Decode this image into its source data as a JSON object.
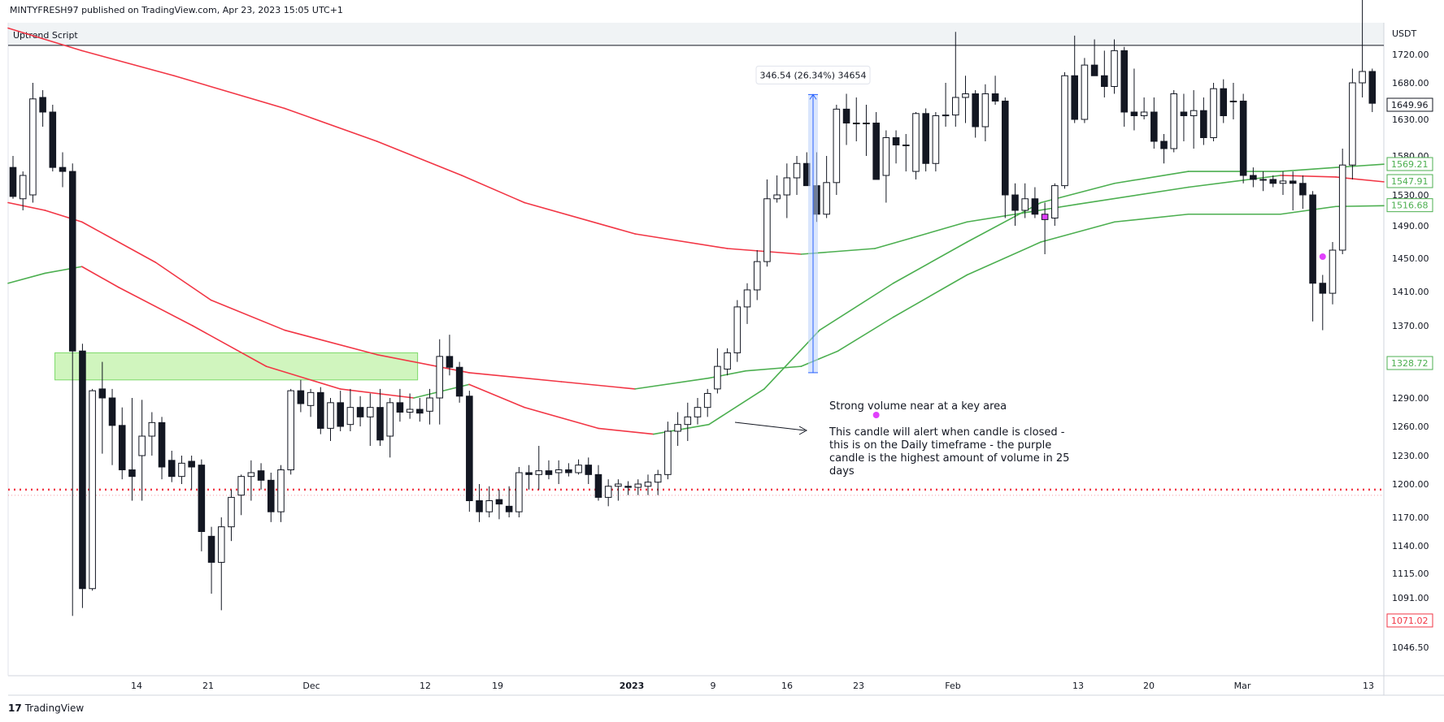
{
  "header": {
    "published": "MINTYFRESH97 published on TradingView.com, Apr 23, 2023 15:05 UTC+1"
  },
  "indicator_label": "Uptrend Script",
  "brand": {
    "logo_text": "TradingView",
    "logo_glyph": "17"
  },
  "price_axis": {
    "currency": "USDT",
    "ticks": [
      "1720.00",
      "1680.00",
      "1630.00",
      "1580.00",
      "1530.00",
      "1490.00",
      "1450.00",
      "1410.00",
      "1370.00",
      "1290.00",
      "1260.00",
      "1230.00",
      "1200.00",
      "1170.00",
      "1140.00",
      "1115.00",
      "1091.00",
      "1046.50"
    ]
  },
  "price_tags": [
    {
      "label": "1649.96",
      "value": 1649.96,
      "bg": "#ffffff",
      "color": "#131722",
      "border": "#131722"
    },
    {
      "label": "1569.21",
      "value": 1569.21,
      "bg": "#ffffff",
      "color": "#4caf50",
      "border": "#4caf50"
    },
    {
      "label": "1547.91",
      "value": 1547.91,
      "bg": "#ffffff",
      "color": "#4caf50",
      "border": "#4caf50"
    },
    {
      "label": "1516.68",
      "value": 1516.68,
      "bg": "#ffffff",
      "color": "#4caf50",
      "border": "#4caf50"
    },
    {
      "label": "1328.72",
      "value": 1328.72,
      "bg": "#ffffff",
      "color": "#4caf50",
      "border": "#4caf50"
    },
    {
      "label": "1071.02",
      "value": 1071.02,
      "bg": "#ffffff",
      "color": "#f23645",
      "border": "#f23645"
    }
  ],
  "time_axis": {
    "ticks": [
      "14",
      "21",
      "Dec",
      "12",
      "19",
      "2023",
      "9",
      "16",
      "23",
      "Feb",
      "13",
      "20",
      "Mar",
      "13"
    ]
  },
  "measure_label": "346.54 (26.34%) 34654",
  "annotations": {
    "title": "Strong volume near at a key area",
    "body_lines": [
      "This candle will alert when candle is closed -",
      "this is on the Daily timeframe - the purple",
      "candle is the highest amount of volume in 25",
      "days"
    ]
  },
  "colors": {
    "up_body": "#ffffff",
    "down_body": "#131722",
    "highlight": "#e040fb",
    "ema_green": "#4caf50",
    "ema_red": "#f23645",
    "zone": "#ccf5b8",
    "measure": "#2962ff"
  },
  "chart_data": {
    "type": "candlestick",
    "y_unit": "USDT",
    "resistance_level": 1732,
    "support_level": 1195,
    "demand_zone": [
      1310,
      1340
    ],
    "measure": {
      "from": 1318,
      "to": 1664
    },
    "candles": [
      {
        "o": 1565,
        "h": 1580,
        "l": 1525,
        "c": 1528
      },
      {
        "o": 1525,
        "h": 1560,
        "l": 1510,
        "c": 1555
      },
      {
        "o": 1530,
        "h": 1680,
        "l": 1520,
        "c": 1658
      },
      {
        "o": 1660,
        "h": 1670,
        "l": 1620,
        "c": 1640
      },
      {
        "o": 1640,
        "h": 1650,
        "l": 1560,
        "c": 1565
      },
      {
        "o": 1565,
        "h": 1585,
        "l": 1540,
        "c": 1560
      },
      {
        "o": 1560,
        "h": 1570,
        "l": 1075,
        "c": 1342
      },
      {
        "o": 1342,
        "h": 1350,
        "l": 1082,
        "c": 1100
      },
      {
        "o": 1100,
        "h": 1300,
        "l": 1098,
        "c": 1298
      },
      {
        "o": 1300,
        "h": 1330,
        "l": 1232,
        "c": 1290
      },
      {
        "o": 1290,
        "h": 1300,
        "l": 1220,
        "c": 1261
      },
      {
        "o": 1261,
        "h": 1280,
        "l": 1205,
        "c": 1215
      },
      {
        "o": 1215,
        "h": 1290,
        "l": 1185,
        "c": 1208
      },
      {
        "o": 1230,
        "h": 1288,
        "l": 1185,
        "c": 1250
      },
      {
        "o": 1250,
        "h": 1275,
        "l": 1230,
        "c": 1264
      },
      {
        "o": 1264,
        "h": 1270,
        "l": 1205,
        "c": 1218
      },
      {
        "o": 1225,
        "h": 1235,
        "l": 1202,
        "c": 1208
      },
      {
        "o": 1208,
        "h": 1230,
        "l": 1200,
        "c": 1222
      },
      {
        "o": 1224,
        "h": 1230,
        "l": 1195,
        "c": 1218
      },
      {
        "o": 1220,
        "h": 1226,
        "l": 1135,
        "c": 1155
      },
      {
        "o": 1150,
        "h": 1160,
        "l": 1095,
        "c": 1125
      },
      {
        "o": 1125,
        "h": 1170,
        "l": 1080,
        "c": 1160
      },
      {
        "o": 1160,
        "h": 1195,
        "l": 1145,
        "c": 1188
      },
      {
        "o": 1190,
        "h": 1210,
        "l": 1172,
        "c": 1208
      },
      {
        "o": 1208,
        "h": 1225,
        "l": 1185,
        "c": 1212
      },
      {
        "o": 1214,
        "h": 1222,
        "l": 1195,
        "c": 1204
      },
      {
        "o": 1204,
        "h": 1212,
        "l": 1165,
        "c": 1175
      },
      {
        "o": 1175,
        "h": 1220,
        "l": 1165,
        "c": 1215
      },
      {
        "o": 1215,
        "h": 1300,
        "l": 1210,
        "c": 1298
      },
      {
        "o": 1298,
        "h": 1310,
        "l": 1275,
        "c": 1284
      },
      {
        "o": 1282,
        "h": 1300,
        "l": 1270,
        "c": 1296
      },
      {
        "o": 1296,
        "h": 1302,
        "l": 1252,
        "c": 1258
      },
      {
        "o": 1258,
        "h": 1290,
        "l": 1245,
        "c": 1285
      },
      {
        "o": 1285,
        "h": 1298,
        "l": 1255,
        "c": 1260
      },
      {
        "o": 1262,
        "h": 1300,
        "l": 1255,
        "c": 1280
      },
      {
        "o": 1280,
        "h": 1292,
        "l": 1260,
        "c": 1270
      },
      {
        "o": 1270,
        "h": 1295,
        "l": 1240,
        "c": 1280
      },
      {
        "o": 1280,
        "h": 1300,
        "l": 1240,
        "c": 1246
      },
      {
        "o": 1250,
        "h": 1290,
        "l": 1228,
        "c": 1285
      },
      {
        "o": 1285,
        "h": 1300,
        "l": 1265,
        "c": 1275
      },
      {
        "o": 1275,
        "h": 1295,
        "l": 1268,
        "c": 1278
      },
      {
        "o": 1278,
        "h": 1290,
        "l": 1265,
        "c": 1274
      },
      {
        "o": 1276,
        "h": 1300,
        "l": 1262,
        "c": 1290
      },
      {
        "o": 1290,
        "h": 1355,
        "l": 1262,
        "c": 1336
      },
      {
        "o": 1336,
        "h": 1360,
        "l": 1315,
        "c": 1324
      },
      {
        "o": 1324,
        "h": 1330,
        "l": 1285,
        "c": 1292
      },
      {
        "o": 1292,
        "h": 1298,
        "l": 1175,
        "c": 1185
      },
      {
        "o": 1185,
        "h": 1200,
        "l": 1165,
        "c": 1175
      },
      {
        "o": 1175,
        "h": 1198,
        "l": 1170,
        "c": 1185
      },
      {
        "o": 1186,
        "h": 1195,
        "l": 1168,
        "c": 1182
      },
      {
        "o": 1180,
        "h": 1198,
        "l": 1170,
        "c": 1175
      },
      {
        "o": 1175,
        "h": 1218,
        "l": 1170,
        "c": 1212
      },
      {
        "o": 1212,
        "h": 1220,
        "l": 1195,
        "c": 1210
      },
      {
        "o": 1210,
        "h": 1240,
        "l": 1195,
        "c": 1214
      },
      {
        "o": 1214,
        "h": 1225,
        "l": 1205,
        "c": 1210
      },
      {
        "o": 1212,
        "h": 1225,
        "l": 1200,
        "c": 1215
      },
      {
        "o": 1215,
        "h": 1222,
        "l": 1208,
        "c": 1212
      },
      {
        "o": 1212,
        "h": 1226,
        "l": 1210,
        "c": 1220
      },
      {
        "o": 1220,
        "h": 1228,
        "l": 1200,
        "c": 1210
      },
      {
        "o": 1210,
        "h": 1220,
        "l": 1185,
        "c": 1188
      },
      {
        "o": 1188,
        "h": 1205,
        "l": 1180,
        "c": 1198
      },
      {
        "o": 1198,
        "h": 1205,
        "l": 1185,
        "c": 1200
      },
      {
        "o": 1198,
        "h": 1203,
        "l": 1190,
        "c": 1197
      },
      {
        "o": 1197,
        "h": 1205,
        "l": 1190,
        "c": 1200
      },
      {
        "o": 1198,
        "h": 1210,
        "l": 1190,
        "c": 1202
      },
      {
        "o": 1202,
        "h": 1215,
        "l": 1190,
        "c": 1210
      },
      {
        "o": 1210,
        "h": 1265,
        "l": 1205,
        "c": 1255
      },
      {
        "o": 1255,
        "h": 1275,
        "l": 1240,
        "c": 1262
      },
      {
        "o": 1262,
        "h": 1285,
        "l": 1245,
        "c": 1270
      },
      {
        "o": 1270,
        "h": 1290,
        "l": 1262,
        "c": 1280
      },
      {
        "o": 1280,
        "h": 1300,
        "l": 1270,
        "c": 1295
      },
      {
        "o": 1300,
        "h": 1345,
        "l": 1295,
        "c": 1325
      },
      {
        "o": 1322,
        "h": 1345,
        "l": 1315,
        "c": 1340
      },
      {
        "o": 1340,
        "h": 1400,
        "l": 1330,
        "c": 1392
      },
      {
        "o": 1392,
        "h": 1420,
        "l": 1372,
        "c": 1412
      },
      {
        "o": 1412,
        "h": 1460,
        "l": 1400,
        "c": 1446
      },
      {
        "o": 1446,
        "h": 1550,
        "l": 1440,
        "c": 1525
      },
      {
        "o": 1525,
        "h": 1555,
        "l": 1520,
        "c": 1530
      },
      {
        "o": 1530,
        "h": 1570,
        "l": 1500,
        "c": 1552
      },
      {
        "o": 1552,
        "h": 1580,
        "l": 1530,
        "c": 1570
      },
      {
        "o": 1570,
        "h": 1585,
        "l": 1545,
        "c": 1542
      },
      {
        "o": 1542,
        "h": 1585,
        "l": 1495,
        "c": 1505
      },
      {
        "o": 1505,
        "h": 1580,
        "l": 1500,
        "c": 1546
      },
      {
        "o": 1546,
        "h": 1650,
        "l": 1530,
        "c": 1644
      },
      {
        "o": 1644,
        "h": 1665,
        "l": 1595,
        "c": 1625
      },
      {
        "o": 1625,
        "h": 1660,
        "l": 1600,
        "c": 1625
      },
      {
        "o": 1625,
        "h": 1650,
        "l": 1580,
        "c": 1625
      },
      {
        "o": 1625,
        "h": 1640,
        "l": 1550,
        "c": 1550
      },
      {
        "o": 1555,
        "h": 1615,
        "l": 1520,
        "c": 1605
      },
      {
        "o": 1605,
        "h": 1615,
        "l": 1570,
        "c": 1595
      },
      {
        "o": 1595,
        "h": 1610,
        "l": 1560,
        "c": 1595
      },
      {
        "o": 1560,
        "h": 1640,
        "l": 1550,
        "c": 1638
      },
      {
        "o": 1638,
        "h": 1645,
        "l": 1560,
        "c": 1570
      },
      {
        "o": 1570,
        "h": 1640,
        "l": 1560,
        "c": 1635
      },
      {
        "o": 1635,
        "h": 1680,
        "l": 1620,
        "c": 1636
      },
      {
        "o": 1636,
        "h": 1750,
        "l": 1620,
        "c": 1660
      },
      {
        "o": 1660,
        "h": 1690,
        "l": 1625,
        "c": 1665
      },
      {
        "o": 1665,
        "h": 1670,
        "l": 1605,
        "c": 1620
      },
      {
        "o": 1620,
        "h": 1678,
        "l": 1600,
        "c": 1665
      },
      {
        "o": 1665,
        "h": 1690,
        "l": 1650,
        "c": 1655
      },
      {
        "o": 1655,
        "h": 1660,
        "l": 1500,
        "c": 1530
      },
      {
        "o": 1530,
        "h": 1545,
        "l": 1490,
        "c": 1510
      },
      {
        "o": 1510,
        "h": 1545,
        "l": 1500,
        "c": 1525
      },
      {
        "o": 1525,
        "h": 1540,
        "l": 1500,
        "c": 1505
      },
      {
        "o": 1505,
        "h": 1520,
        "l": 1455,
        "c": 1498,
        "hl": true
      },
      {
        "o": 1500,
        "h": 1545,
        "l": 1490,
        "c": 1542
      },
      {
        "o": 1542,
        "h": 1695,
        "l": 1538,
        "c": 1690
      },
      {
        "o": 1690,
        "h": 1745,
        "l": 1625,
        "c": 1630
      },
      {
        "o": 1630,
        "h": 1715,
        "l": 1625,
        "c": 1705
      },
      {
        "o": 1705,
        "h": 1740,
        "l": 1690,
        "c": 1690
      },
      {
        "o": 1690,
        "h": 1725,
        "l": 1660,
        "c": 1675
      },
      {
        "o": 1675,
        "h": 1740,
        "l": 1665,
        "c": 1725
      },
      {
        "o": 1725,
        "h": 1730,
        "l": 1620,
        "c": 1640
      },
      {
        "o": 1640,
        "h": 1700,
        "l": 1615,
        "c": 1635
      },
      {
        "o": 1635,
        "h": 1660,
        "l": 1630,
        "c": 1640
      },
      {
        "o": 1640,
        "h": 1660,
        "l": 1590,
        "c": 1600
      },
      {
        "o": 1600,
        "h": 1610,
        "l": 1570,
        "c": 1590
      },
      {
        "o": 1590,
        "h": 1670,
        "l": 1585,
        "c": 1665
      },
      {
        "o": 1640,
        "h": 1665,
        "l": 1600,
        "c": 1635
      },
      {
        "o": 1635,
        "h": 1670,
        "l": 1590,
        "c": 1642
      },
      {
        "o": 1642,
        "h": 1660,
        "l": 1595,
        "c": 1605
      },
      {
        "o": 1605,
        "h": 1680,
        "l": 1600,
        "c": 1672
      },
      {
        "o": 1672,
        "h": 1685,
        "l": 1625,
        "c": 1635
      },
      {
        "o": 1655,
        "h": 1680,
        "l": 1630,
        "c": 1655
      },
      {
        "o": 1655,
        "h": 1665,
        "l": 1545,
        "c": 1555
      },
      {
        "o": 1555,
        "h": 1565,
        "l": 1540,
        "c": 1550
      },
      {
        "o": 1550,
        "h": 1560,
        "l": 1535,
        "c": 1550
      },
      {
        "o": 1550,
        "h": 1555,
        "l": 1540,
        "c": 1545
      },
      {
        "o": 1545,
        "h": 1560,
        "l": 1530,
        "c": 1548
      },
      {
        "o": 1548,
        "h": 1560,
        "l": 1510,
        "c": 1545
      },
      {
        "o": 1545,
        "h": 1555,
        "l": 1512,
        "c": 1530
      },
      {
        "o": 1530,
        "h": 1535,
        "l": 1375,
        "c": 1420
      },
      {
        "o": 1420,
        "h": 1430,
        "l": 1365,
        "c": 1408
      },
      {
        "o": 1408,
        "h": 1470,
        "l": 1395,
        "c": 1460
      },
      {
        "o": 1460,
        "h": 1590,
        "l": 1455,
        "c": 1568
      },
      {
        "o": 1568,
        "h": 1700,
        "l": 1550,
        "c": 1680
      },
      {
        "o": 1680,
        "h": 1800,
        "l": 1660,
        "c": 1696
      },
      {
        "o": 1696,
        "h": 1700,
        "l": 1640,
        "c": 1652
      }
    ],
    "dots": [
      {
        "i": 87,
        "price": 1272
      },
      {
        "i": 132,
        "price": 1452
      }
    ],
    "cross": {
      "i": 160,
      "price": 1530
    },
    "ema_long": [
      [
        0,
        1755
      ],
      [
        20,
        1725
      ],
      [
        45,
        1690
      ],
      [
        75,
        1645
      ],
      [
        100,
        1600
      ],
      [
        123,
        1555
      ],
      [
        140,
        1520
      ],
      [
        170,
        1480
      ],
      [
        195,
        1462
      ],
      [
        215,
        1455
      ],
      [
        235,
        1462
      ],
      [
        245,
        1475
      ],
      [
        260,
        1495
      ],
      [
        290,
        1518
      ],
      [
        320,
        1540
      ],
      [
        345,
        1555
      ],
      [
        360,
        1553
      ],
      [
        373,
        1547
      ]
    ],
    "ema_mid": [
      [
        0,
        1520
      ],
      [
        10,
        1510
      ],
      [
        20,
        1495
      ],
      [
        40,
        1445
      ],
      [
        55,
        1400
      ],
      [
        75,
        1365
      ],
      [
        100,
        1338
      ],
      [
        125,
        1318
      ],
      [
        150,
        1308
      ],
      [
        170,
        1300
      ],
      [
        190,
        1312
      ],
      [
        200,
        1320
      ],
      [
        215,
        1325
      ],
      [
        225,
        1342
      ],
      [
        240,
        1380
      ],
      [
        260,
        1430
      ],
      [
        280,
        1470
      ],
      [
        300,
        1495
      ],
      [
        320,
        1505
      ],
      [
        345,
        1505
      ],
      [
        360,
        1515
      ],
      [
        373,
        1516
      ]
    ],
    "ema_short": [
      [
        0,
        1420
      ],
      [
        10,
        1432
      ],
      [
        20,
        1440
      ],
      [
        30,
        1415
      ],
      [
        50,
        1370
      ],
      [
        70,
        1325
      ],
      [
        90,
        1300
      ],
      [
        110,
        1290
      ],
      [
        125,
        1305
      ],
      [
        140,
        1280
      ],
      [
        160,
        1258
      ],
      [
        175,
        1252
      ],
      [
        190,
        1262
      ],
      [
        205,
        1300
      ],
      [
        220,
        1365
      ],
      [
        240,
        1420
      ],
      [
        260,
        1470
      ],
      [
        280,
        1520
      ],
      [
        300,
        1545
      ],
      [
        320,
        1560
      ],
      [
        345,
        1560
      ],
      [
        360,
        1565
      ],
      [
        373,
        1569
      ]
    ]
  }
}
